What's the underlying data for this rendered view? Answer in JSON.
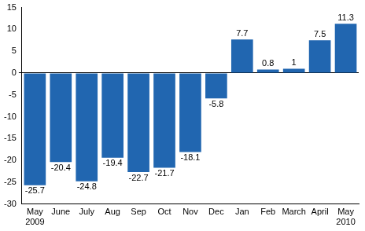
{
  "chart_data": {
    "type": "bar",
    "categories": [
      [
        "May",
        "2009"
      ],
      "June",
      "July",
      "Aug",
      "Sep",
      "Oct",
      "Nov",
      "Dec",
      "Jan",
      "Feb",
      "March",
      "April",
      [
        "May",
        "2010"
      ]
    ],
    "values": [
      -25.7,
      -20.4,
      -24.8,
      -19.4,
      -22.7,
      -21.7,
      -18.1,
      -5.8,
      7.7,
      0.8,
      1,
      7.5,
      11.3
    ],
    "color": "#2166b0",
    "ylim": [
      -30,
      15
    ],
    "yticks": [
      -30,
      -25,
      -20,
      -15,
      -10,
      -5,
      0,
      5,
      10,
      15
    ],
    "grid": false,
    "data_labels": true
  }
}
